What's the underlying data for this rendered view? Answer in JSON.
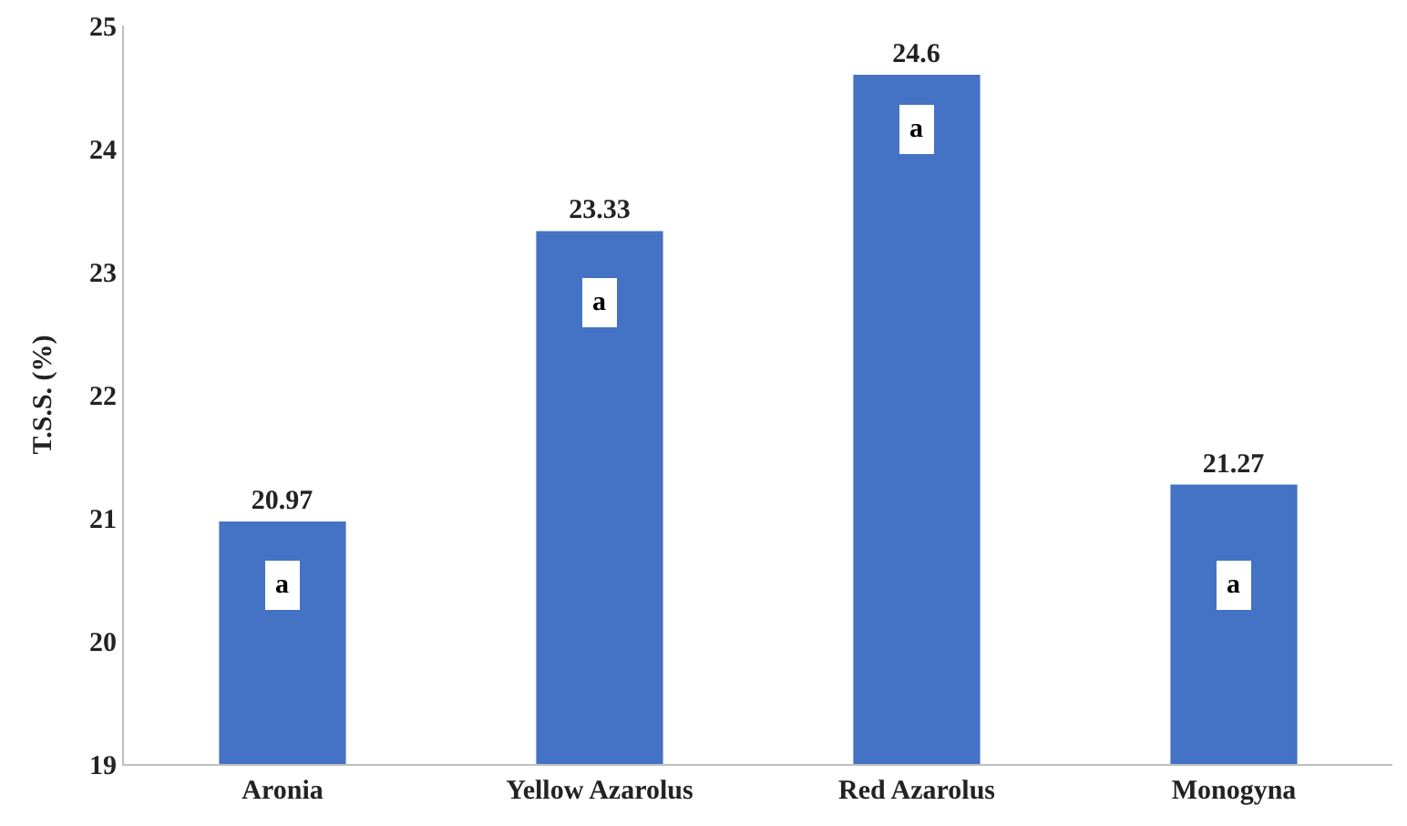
{
  "chart_data": {
    "type": "bar",
    "ylabel": "T.S.S. (%)",
    "categories": [
      "Aronia",
      "Yellow Azarolus",
      "Red Azarolus",
      "Monogyna"
    ],
    "values": [
      20.97,
      23.33,
      24.6,
      21.27
    ],
    "color": "#4472c4",
    "ylim": [
      19,
      25
    ],
    "yticks": [
      19,
      20,
      21,
      22,
      23,
      24,
      25
    ],
    "grid": false,
    "data_labels": true,
    "annotations": [
      {
        "text": "a",
        "x": "Aronia",
        "y": 20.45
      },
      {
        "text": "a",
        "x": "Yellow Azarolus",
        "y": 22.75
      },
      {
        "text": "a",
        "x": "Red Azarolus",
        "y": 24.15
      },
      {
        "text": "a",
        "x": "Monogyna",
        "y": 20.45
      }
    ]
  }
}
